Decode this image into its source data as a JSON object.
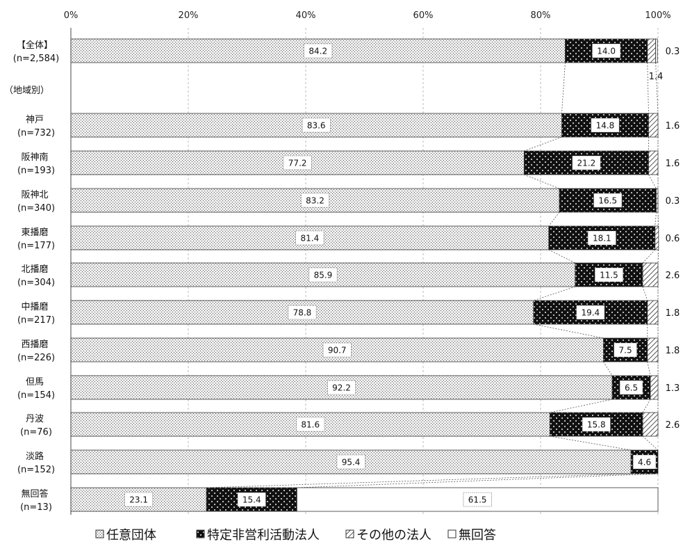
{
  "chart_data": {
    "type": "bar",
    "orientation": "horizontal",
    "stacked": true,
    "percent": true,
    "x_ticks": [
      "0%",
      "20%",
      "40%",
      "60%",
      "80%",
      "100%"
    ],
    "xlim": [
      0,
      100
    ],
    "series": [
      {
        "name": "任意団体",
        "pattern": "fine-dots",
        "color": "#d9d9d9"
      },
      {
        "name": "特定非営利活動法人",
        "pattern": "checker-dark",
        "color": "#222222"
      },
      {
        "name": "その他の法人",
        "pattern": "diagonal-hatch",
        "color": "#888888"
      },
      {
        "name": "無回答",
        "pattern": "none",
        "color": "#ffffff"
      }
    ],
    "section_label": "（地域別）",
    "rows": [
      {
        "label": [
          "【全体】",
          "(n=2,584)"
        ],
        "values": [
          84.2,
          14.0,
          1.4,
          0.3
        ],
        "labels": [
          "84.2",
          "14.0",
          "1.4",
          "0.3"
        ]
      },
      {
        "label": [
          "神戸",
          "(n=732)"
        ],
        "values": [
          83.6,
          14.8,
          1.6,
          0
        ],
        "labels": [
          "83.6",
          "14.8",
          "1.6",
          ""
        ]
      },
      {
        "label": [
          "阪神南",
          "(n=193)"
        ],
        "values": [
          77.2,
          21.2,
          1.6,
          0
        ],
        "labels": [
          "77.2",
          "21.2",
          "1.6",
          ""
        ]
      },
      {
        "label": [
          "阪神北",
          "(n=340)"
        ],
        "values": [
          83.2,
          16.5,
          0.3,
          0
        ],
        "labels": [
          "83.2",
          "16.5",
          "0.3",
          ""
        ]
      },
      {
        "label": [
          "東播磨",
          "(n=177)"
        ],
        "values": [
          81.4,
          18.1,
          0.6,
          0
        ],
        "labels": [
          "81.4",
          "18.1",
          "0.6",
          ""
        ]
      },
      {
        "label": [
          "北播磨",
          "(n=304)"
        ],
        "values": [
          85.9,
          11.5,
          2.6,
          0
        ],
        "labels": [
          "85.9",
          "11.5",
          "2.6",
          ""
        ]
      },
      {
        "label": [
          "中播磨",
          "(n=217)"
        ],
        "values": [
          78.8,
          19.4,
          1.8,
          0
        ],
        "labels": [
          "78.8",
          "19.4",
          "1.8",
          ""
        ]
      },
      {
        "label": [
          "西播磨",
          "(n=226)"
        ],
        "values": [
          90.7,
          7.5,
          1.8,
          0
        ],
        "labels": [
          "90.7",
          "7.5",
          "1.8",
          ""
        ]
      },
      {
        "label": [
          "但馬",
          "(n=154)"
        ],
        "values": [
          92.2,
          6.5,
          1.3,
          0
        ],
        "labels": [
          "92.2",
          "6.5",
          "1.3",
          ""
        ]
      },
      {
        "label": [
          "丹波",
          "(n=76)"
        ],
        "values": [
          81.6,
          15.8,
          2.6,
          0
        ],
        "labels": [
          "81.6",
          "15.8",
          "2.6",
          ""
        ]
      },
      {
        "label": [
          "淡路",
          "(n=152)"
        ],
        "values": [
          95.4,
          4.6,
          0,
          0
        ],
        "labels": [
          "95.4",
          "4.6",
          "",
          ""
        ]
      },
      {
        "label": [
          "無回答",
          "(n=13)"
        ],
        "values": [
          23.1,
          15.4,
          0,
          61.5
        ],
        "labels": [
          "23.1",
          "15.4",
          "",
          "61.5"
        ]
      }
    ],
    "legend_position": "bottom"
  }
}
